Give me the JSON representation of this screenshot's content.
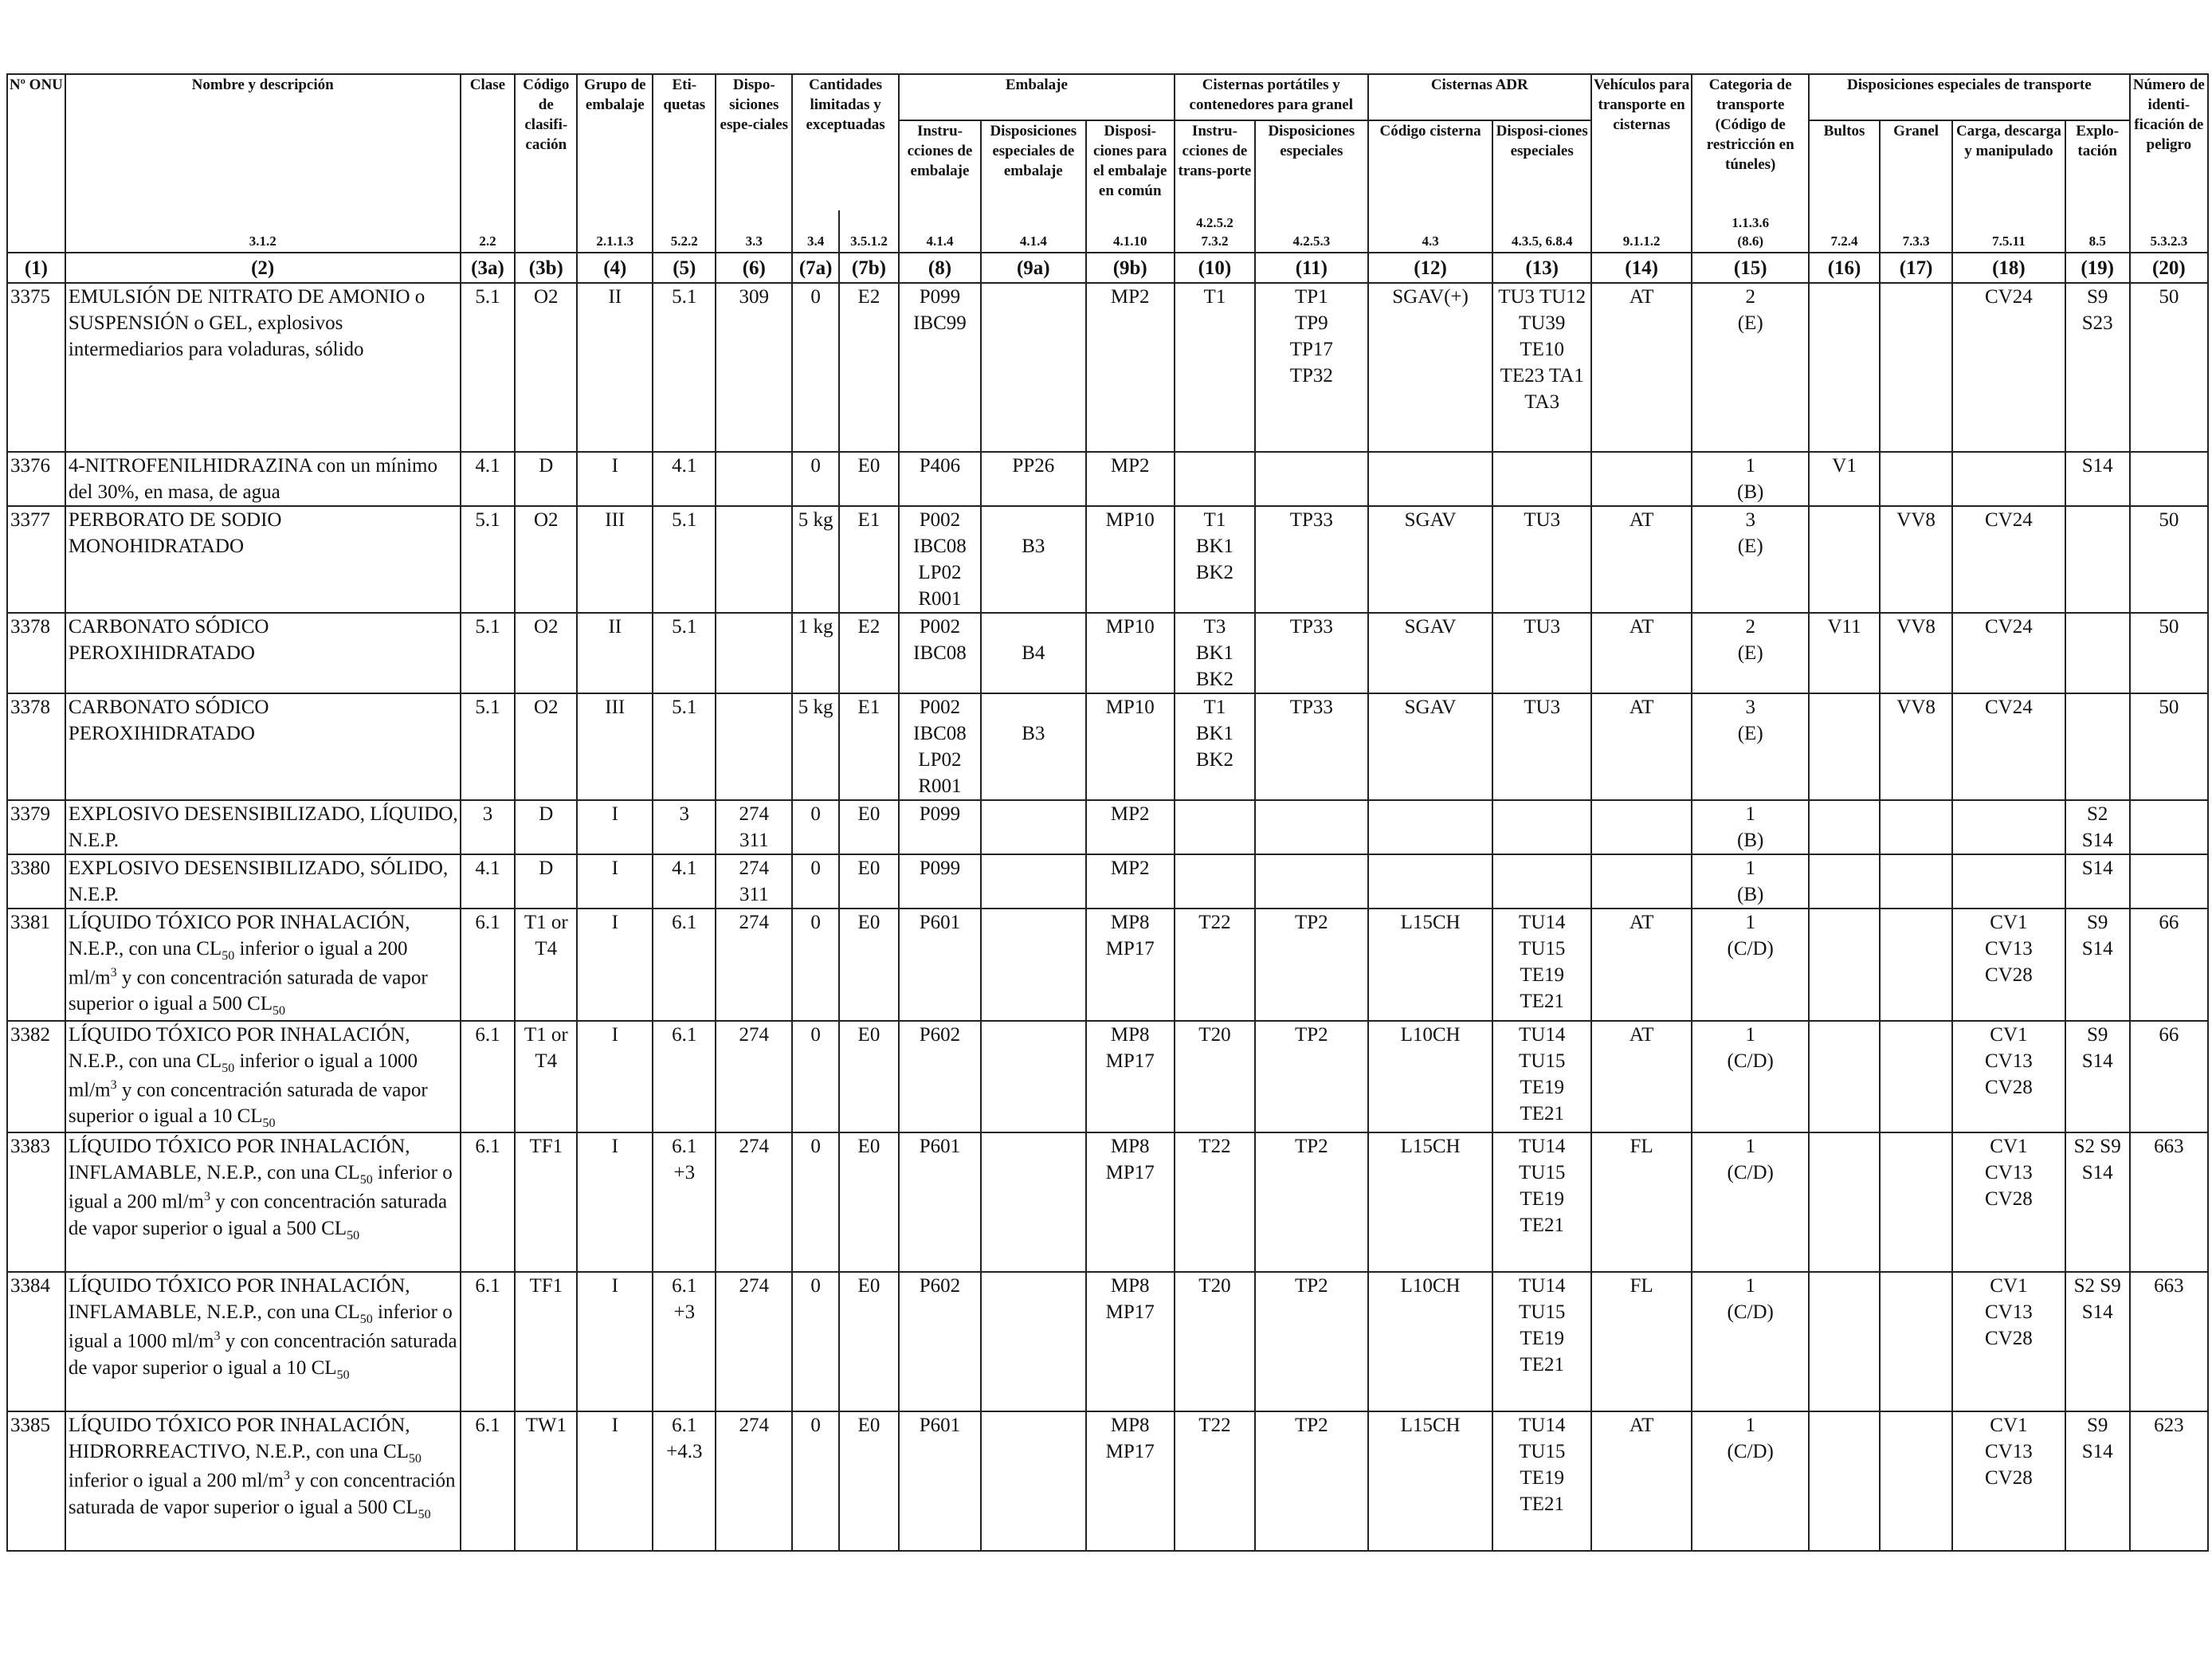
{
  "header": {
    "group_row": {
      "un": "Nº ONU",
      "name": "Nombre y descripción",
      "class": "Clase",
      "classcode": "Código de clasifi-cación",
      "packing_group": "Grupo de embalaje",
      "labels": "Eti-quetas",
      "special_prov": "Dispo-siciones espe-ciales",
      "limited_qty": "Cantidades limitadas y exceptuadas",
      "packaging": "Embalaje",
      "portable_tanks": "Cisternas portátiles y contenedores para granel",
      "adr_tanks": "Cisternas ADR",
      "vehicle": "Vehículos para transporte en cisternas",
      "transport_cat": "Categoria de transporte (Código de restricción en túneles)",
      "special_transport": "Disposiciones especiales de transporte",
      "hazard_id": "Número de identi-ficación de peligro"
    },
    "sub_row": {
      "pack_instr": "Instru-cciones de embalaje",
      "pack_special": "Disposiciones especiales de embalaje",
      "mixed": "Disposi-ciones para el embalaje en común",
      "tank_instr": "Instru-cciones de trans-porte",
      "tank_special": "Disposiciones especiales",
      "tank_code": "Código cisterna",
      "adr_special": "Disposi-ciones especiales",
      "packages": "Bultos",
      "bulk": "Granel",
      "loading": "Carga, descarga y manipulado",
      "operation": "Explo-tación"
    },
    "refs": [
      "",
      "3.1.2",
      "2.2",
      "",
      "2.1.1.3",
      "5.2.2",
      "3.3",
      "3.4",
      "3.5.1.2",
      "4.1.4",
      "4.1.4",
      "4.1.10",
      "4.2.5.2\n7.3.2",
      "4.2.5.3",
      "4.3",
      "4.3.5, 6.8.4",
      "9.1.1.2",
      "1.1.3.6\n(8.6)",
      "7.2.4",
      "7.3.3",
      "7.5.11",
      "8.5",
      "5.3.2.3"
    ],
    "col_numbers": [
      "(1)",
      "(2)",
      "(3a)",
      "(3b)",
      "(4)",
      "(5)",
      "(6)",
      "(7a)",
      "(7b)",
      "(8)",
      "(9a)",
      "(9b)",
      "(10)",
      "(11)",
      "(12)",
      "(13)",
      "(14)",
      "(15)",
      "(16)",
      "(17)",
      "(18)",
      "(19)",
      "(20)"
    ]
  },
  "rows": [
    {
      "un": "3375",
      "name": "EMULSIÓN DE NITRATO DE AMONIO o SUSPENSIÓN o GEL, explosivos intermediarios para voladuras, sólido",
      "class": "5.1",
      "code": "O2",
      "pg": "II",
      "labels": "5.1",
      "sp": "309",
      "lq": "0",
      "eq": "E2",
      "pi": "P099\nIBC99",
      "pp": "",
      "mp": "MP2",
      "ti": "T1",
      "tp": "TP1\nTP9\nTP17\nTP32",
      "tc": "SGAV(+)",
      "ts": "TU3 TU12\nTU39\nTE10\nTE23 TA1\nTA3",
      "veh": "AT",
      "cat": "2\n(E)",
      "pk": "",
      "bulk": "",
      "load": "CV24",
      "op": "S9\nS23",
      "hin": "50"
    },
    {
      "un": "3376",
      "name": "4-NITROFENILHIDRAZINA con un mínimo del 30%, en masa, de agua",
      "class": "4.1",
      "code": "D",
      "pg": "I",
      "labels": "4.1",
      "sp": "",
      "lq": "0",
      "eq": "E0",
      "pi": "P406",
      "pp": "PP26",
      "mp": "MP2",
      "ti": "",
      "tp": "",
      "tc": "",
      "ts": "",
      "veh": "",
      "cat": "1\n(B)",
      "pk": "V1",
      "bulk": "",
      "load": "",
      "op": "S14",
      "hin": ""
    },
    {
      "un": "3377",
      "name": "PERBORATO DE SODIO MONOHIDRATADO",
      "class": "5.1",
      "code": "O2",
      "pg": "III",
      "labels": "5.1",
      "sp": "",
      "lq": "5 kg",
      "eq": "E1",
      "pi": "P002\nIBC08\nLP02\nR001",
      "pp": "\nB3",
      "mp": "MP10",
      "ti": "T1\nBK1\nBK2",
      "tp": "TP33",
      "tc": "SGAV",
      "ts": "TU3",
      "veh": "AT",
      "cat": "3\n(E)",
      "pk": "",
      "bulk": "VV8",
      "load": "CV24",
      "op": "",
      "hin": "50"
    },
    {
      "un": "3378",
      "name": "CARBONATO SÓDICO PEROXIHIDRATADO",
      "class": "5.1",
      "code": "O2",
      "pg": "II",
      "labels": "5.1",
      "sp": "",
      "lq": "1 kg",
      "eq": "E2",
      "pi": "P002\nIBC08",
      "pp": "\nB4",
      "mp": "MP10",
      "ti": "T3\nBK1\nBK2",
      "tp": "TP33",
      "tc": "SGAV",
      "ts": "TU3",
      "veh": "AT",
      "cat": "2\n(E)",
      "pk": "V11",
      "bulk": "VV8",
      "load": "CV24",
      "op": "",
      "hin": "50"
    },
    {
      "un": "3378",
      "name": "CARBONATO SÓDICO PEROXIHIDRATADO",
      "class": "5.1",
      "code": "O2",
      "pg": "III",
      "labels": "5.1",
      "sp": "",
      "lq": "5 kg",
      "eq": "E1",
      "pi": "P002\nIBC08\nLP02\nR001",
      "pp": "\nB3",
      "mp": "MP10",
      "ti": "T1\nBK1\nBK2",
      "tp": "TP33",
      "tc": "SGAV",
      "ts": "TU3",
      "veh": "AT",
      "cat": "3\n(E)",
      "pk": "",
      "bulk": "VV8",
      "load": "CV24",
      "op": "",
      "hin": "50"
    },
    {
      "un": "3379",
      "name": "EXPLOSIVO DESENSIBILIZADO, LÍQUIDO, N.E.P.",
      "class": "3",
      "code": "D",
      "pg": "I",
      "labels": "3",
      "sp": "274\n311",
      "lq": "0",
      "eq": "E0",
      "pi": "P099",
      "pp": "",
      "mp": "MP2",
      "ti": "",
      "tp": "",
      "tc": "",
      "ts": "",
      "veh": "",
      "cat": "1\n(B)",
      "pk": "",
      "bulk": "",
      "load": "",
      "op": "S2\nS14",
      "hin": ""
    },
    {
      "un": "3380",
      "name": "EXPLOSIVO DESENSIBILIZADO, SÓLIDO, N.E.P.",
      "class": "4.1",
      "code": "D",
      "pg": "I",
      "labels": "4.1",
      "sp": "274\n311",
      "lq": "0",
      "eq": "E0",
      "pi": "P099",
      "pp": "",
      "mp": "MP2",
      "ti": "",
      "tp": "",
      "tc": "",
      "ts": "",
      "veh": "",
      "cat": "1\n(B)",
      "pk": "",
      "bulk": "",
      "load": "",
      "op": "S14",
      "hin": ""
    },
    {
      "un": "3381",
      "name": "LÍQUIDO TÓXICO POR INHALACIÓN, N.E.P., con una CL50 inferior o igual a 200 ml/m3 y con concentración saturada de vapor superior o igual a 500 CL50",
      "class": "6.1",
      "code": "T1 or\nT4",
      "pg": "I",
      "labels": "6.1",
      "sp": "274",
      "lq": "0",
      "eq": "E0",
      "pi": "P601",
      "pp": "",
      "mp": "MP8\nMP17",
      "ti": "T22",
      "tp": "TP2",
      "tc": "L15CH",
      "ts": "TU14\nTU15\nTE19\nTE21",
      "veh": "AT",
      "cat": "1\n(C/D)",
      "pk": "",
      "bulk": "",
      "load": "CV1\nCV13\nCV28",
      "op": "S9\nS14",
      "hin": "66"
    },
    {
      "un": "3382",
      "name": "LÍQUIDO TÓXICO POR INHALACIÓN, N.E.P., con una CL50 inferior o igual a 1000 ml/m3 y con concentración saturada de vapor superior o igual a 10 CL50",
      "class": "6.1",
      "code": "T1 or\nT4",
      "pg": "I",
      "labels": "6.1",
      "sp": "274",
      "lq": "0",
      "eq": "E0",
      "pi": "P602",
      "pp": "",
      "mp": "MP8\nMP17",
      "ti": "T20",
      "tp": "TP2",
      "tc": "L10CH",
      "ts": "TU14\nTU15\nTE19\nTE21",
      "veh": "AT",
      "cat": "1\n(C/D)",
      "pk": "",
      "bulk": "",
      "load": "CV1\nCV13\nCV28",
      "op": "S9\nS14",
      "hin": "66"
    },
    {
      "un": "3383",
      "name": "LÍQUIDO TÓXICO POR INHALACIÓN, INFLAMABLE, N.E.P., con una CL50 inferior o igual a 200 ml/m3 y con concentración saturada de vapor superior o igual a 500 CL50",
      "class": "6.1",
      "code": "TF1",
      "pg": "I",
      "labels": "6.1\n+3",
      "sp": "274",
      "lq": "0",
      "eq": "E0",
      "pi": "P601",
      "pp": "",
      "mp": "MP8\nMP17",
      "ti": "T22",
      "tp": "TP2",
      "tc": "L15CH",
      "ts": "TU14\nTU15\nTE19\nTE21",
      "veh": "FL",
      "cat": "1\n(C/D)",
      "pk": "",
      "bulk": "",
      "load": "CV1\nCV13\nCV28",
      "op": "S2 S9\nS14",
      "hin": "663"
    },
    {
      "un": "3384",
      "name": "LÍQUIDO TÓXICO POR INHALACIÓN, INFLAMABLE, N.E.P., con una CL50 inferior o igual a 1000 ml/m3 y con concentración saturada de vapor superior o igual a 10 CL50",
      "class": "6.1",
      "code": "TF1",
      "pg": "I",
      "labels": "6.1\n+3",
      "sp": "274",
      "lq": "0",
      "eq": "E0",
      "pi": "P602",
      "pp": "",
      "mp": "MP8\nMP17",
      "ti": "T20",
      "tp": "TP2",
      "tc": "L10CH",
      "ts": "TU14\nTU15\nTE19\nTE21",
      "veh": "FL",
      "cat": "1\n(C/D)",
      "pk": "",
      "bulk": "",
      "load": "CV1\nCV13\nCV28",
      "op": "S2 S9\nS14",
      "hin": "663"
    },
    {
      "un": "3385",
      "name": "LÍQUIDO TÓXICO POR INHALACIÓN, HIDRORREACTIVO, N.E.P., con una CL50 inferior o igual a 200 ml/m3 y con concentración saturada de vapor superior o igual a 500 CL50",
      "class": "6.1",
      "code": "TW1",
      "pg": "I",
      "labels": "6.1\n+4.3",
      "sp": "274",
      "lq": "0",
      "eq": "E0",
      "pi": "P601",
      "pp": "",
      "mp": "MP8\nMP17",
      "ti": "T22",
      "tp": "TP2",
      "tc": "L15CH",
      "ts": "TU14\nTU15\nTE19\nTE21",
      "veh": "AT",
      "cat": "1\n(C/D)",
      "pk": "",
      "bulk": "",
      "load": "CV1\nCV13\nCV28",
      "op": "S9\nS14",
      "hin": "623"
    }
  ]
}
